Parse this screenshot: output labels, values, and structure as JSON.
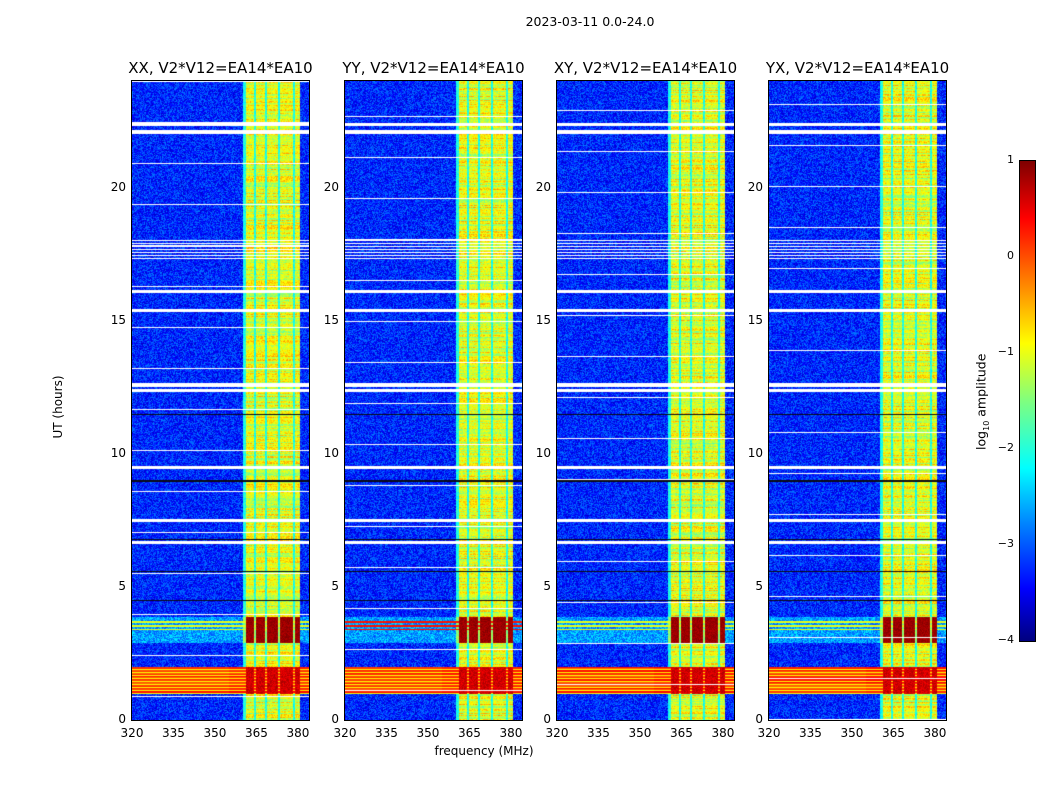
{
  "chart_data": {
    "type": "heatmap",
    "title": "2023-03-11 0.0-24.0",
    "xlabel": "frequency (MHz)",
    "ylabel": "UT (hours)",
    "xlim": [
      320,
      384
    ],
    "ylim": [
      0,
      24
    ],
    "xticks": [
      320,
      335,
      350,
      365,
      380
    ],
    "yticks": [
      0,
      5,
      10,
      15,
      20
    ],
    "panels": [
      {
        "title": "XX, V2*V12=EA14*EA10",
        "pol": "XX"
      },
      {
        "title": "YY, V2*V12=EA14*EA10",
        "pol": "YY"
      },
      {
        "title": "XY, V2*V12=EA14*EA10",
        "pol": "XY"
      },
      {
        "title": "YX, V2*V12=EA14*EA10",
        "pol": "YX"
      }
    ],
    "colorbar": {
      "label_prefix": "log",
      "label_sub": "10",
      "label_suffix": " amplitude",
      "range": [
        -4,
        1
      ],
      "ticks": [
        "1",
        "0",
        "−1",
        "−2",
        "−3",
        "−4"
      ],
      "colormap": "jet"
    },
    "features": {
      "background_log_amp": -3.2,
      "strong_band_mhz": [
        [
          361,
          364
        ],
        [
          364.6,
          368
        ],
        [
          368.8,
          372.6
        ],
        [
          373.4,
          378
        ],
        [
          378.6,
          380.6
        ]
      ],
      "strong_band_log_amp": -1.0,
      "high_rfi_ut": [
        [
          2.9,
          3.9
        ],
        [
          1.0,
          2.0
        ]
      ],
      "flagged_ut_white": [
        22.4,
        22.1,
        16.1,
        15.4,
        12.6,
        12.4,
        9.5,
        7.5,
        6.7
      ],
      "dark_rows_ut": [
        11.5,
        9.0,
        6.8,
        5.6,
        4.5
      ]
    }
  }
}
